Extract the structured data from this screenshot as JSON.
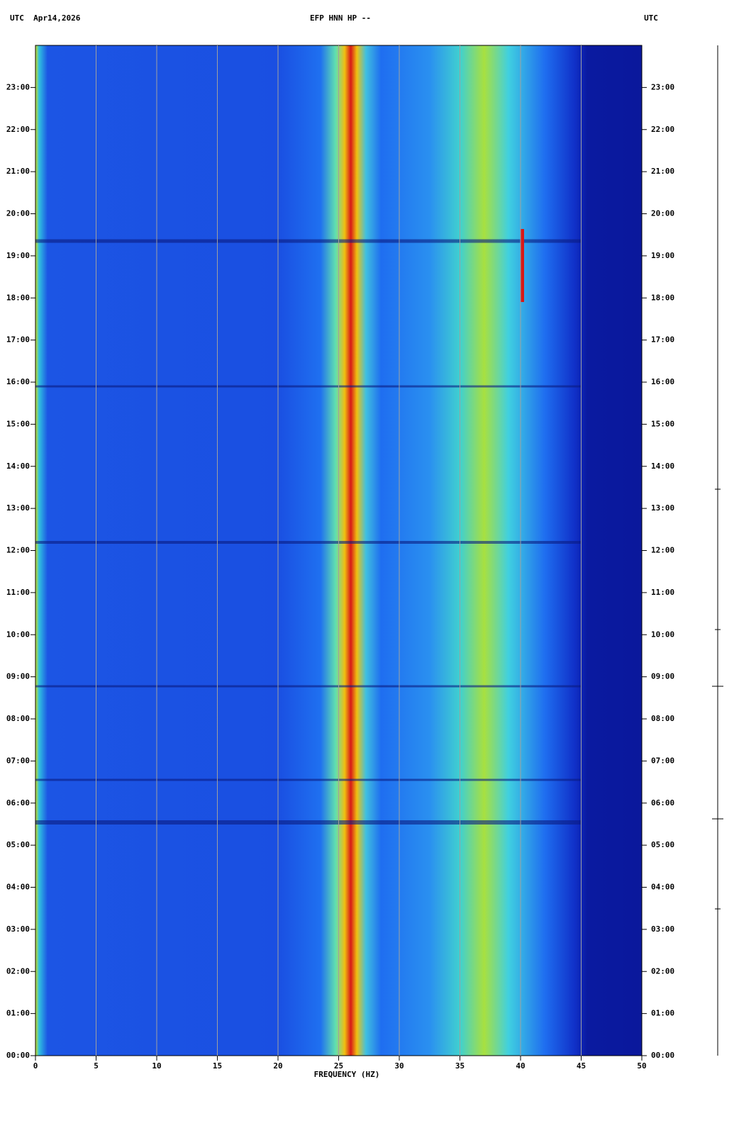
{
  "chart_data": {
    "type": "spectrogram",
    "title": "EFP HNN HP --",
    "header_left": "UTC  Apr14,2026",
    "header_right": "UTC",
    "x_label": "FREQUENCY (HZ)",
    "xlim": [
      0,
      50
    ],
    "xticks": [
      0,
      5,
      10,
      15,
      20,
      25,
      30,
      35,
      40,
      45,
      50
    ],
    "ylim": [
      0,
      24
    ],
    "yticks": [
      {
        "value": 0,
        "label": "00:00"
      },
      {
        "value": 1,
        "label": "01:00"
      },
      {
        "value": 2,
        "label": "02:00"
      },
      {
        "value": 3,
        "label": "03:00"
      },
      {
        "value": 4,
        "label": "04:00"
      },
      {
        "value": 5,
        "label": "05:00"
      },
      {
        "value": 6,
        "label": "06:00"
      },
      {
        "value": 7,
        "label": "07:00"
      },
      {
        "value": 8,
        "label": "08:00"
      },
      {
        "value": 9,
        "label": "09:00"
      },
      {
        "value": 10,
        "label": "10:00"
      },
      {
        "value": 11,
        "label": "11:00"
      },
      {
        "value": 12,
        "label": "12:00"
      },
      {
        "value": 13,
        "label": "13:00"
      },
      {
        "value": 14,
        "label": "14:00"
      },
      {
        "value": 15,
        "label": "15:00"
      },
      {
        "value": 16,
        "label": "16:00"
      },
      {
        "value": 17,
        "label": "17:00"
      },
      {
        "value": 18,
        "label": "18:00"
      },
      {
        "value": 19,
        "label": "19:00"
      },
      {
        "value": 20,
        "label": "20:00"
      },
      {
        "value": 21,
        "label": "21:00"
      },
      {
        "value": 22,
        "label": "22:00"
      },
      {
        "value": 23,
        "label": "23:00"
      }
    ],
    "grid": true
  }
}
